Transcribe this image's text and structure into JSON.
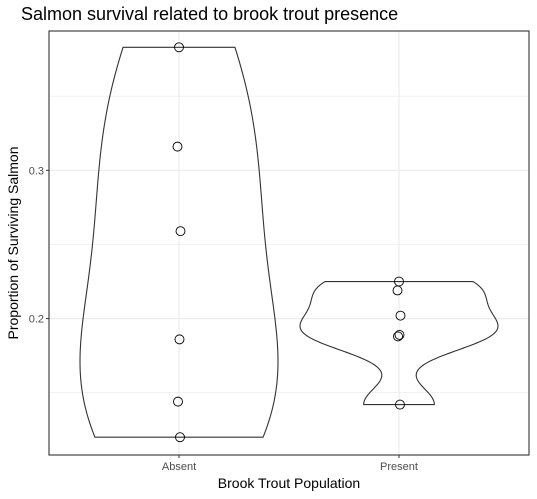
{
  "chart_data": {
    "type": "violin",
    "title": "Salmon survival related to brook trout presence",
    "xlabel": "Brook Trout Population",
    "ylabel": "Proportion of Surviving Salmon",
    "categories": [
      "Absent",
      "Present"
    ],
    "ylim": [
      0.108,
      0.394
    ],
    "yticks": [
      0.2,
      0.3
    ],
    "ytick_labels": [
      "0.2",
      "0.3"
    ],
    "grid": true,
    "series": [
      {
        "category": "Absent",
        "points": [
          0.383,
          0.316,
          0.259,
          0.186,
          0.144,
          0.12
        ]
      },
      {
        "category": "Present",
        "points": [
          0.225,
          0.219,
          0.202,
          0.189,
          0.188,
          0.142
        ]
      }
    ],
    "colors": {
      "outline": "#333333",
      "grid": "#ebebeb",
      "panel_border": "#333333",
      "point": "#000000"
    }
  }
}
